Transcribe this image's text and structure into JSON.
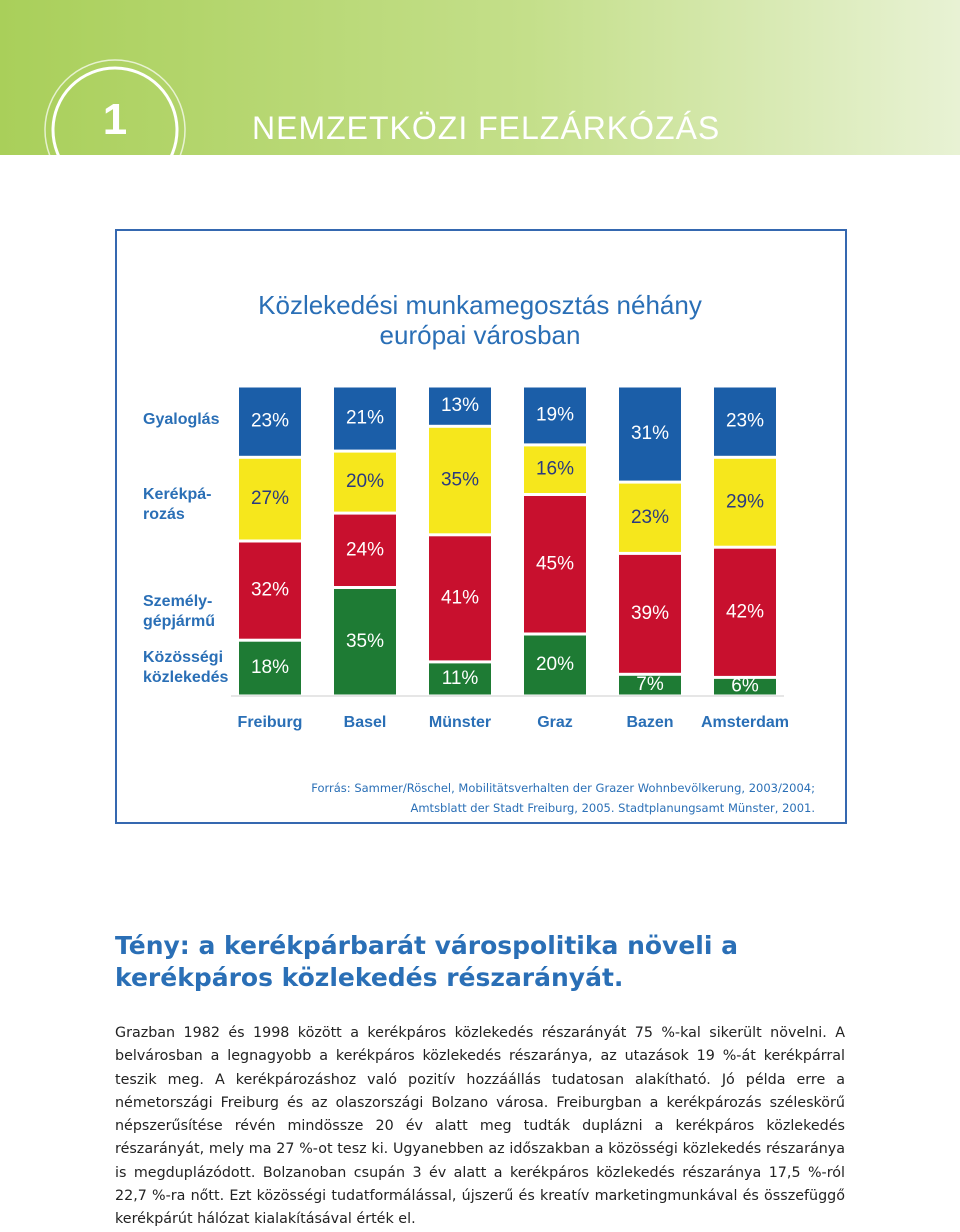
{
  "header": {
    "number": "1",
    "title": "NEMZETKÖZI FELZÁRKÓZÁS"
  },
  "chart_data": {
    "type": "bar",
    "stacked": true,
    "title": "Közlekedési munkamegosztás néhány\neurópai városban",
    "categories": [
      "Freiburg",
      "Basel",
      "Münster",
      "Graz",
      "Bazen",
      "Amsterdam"
    ],
    "ylim": [
      0,
      100
    ],
    "series": [
      {
        "name": "Közösségi\nközlekedés",
        "color": "#1e7b34",
        "values": [
          18,
          35,
          11,
          20,
          7,
          6
        ],
        "value_labels": [
          "18%",
          "35%",
          "11%",
          "20%",
          "7%",
          "6%"
        ]
      },
      {
        "name": "Személy-\ngépjármű",
        "color": "#c8102e",
        "values": [
          32,
          24,
          41,
          45,
          39,
          42
        ],
        "value_labels": [
          "32%",
          "24%",
          "41%",
          "45%",
          "39%",
          "42%"
        ]
      },
      {
        "name": "Kerékpá-\nrozás",
        "color": "#f6e71c",
        "values": [
          27,
          20,
          35,
          16,
          23,
          29
        ],
        "value_labels": [
          "27%",
          "20%",
          "35%",
          "16%",
          "23%",
          "29%"
        ]
      },
      {
        "name": "Gyaloglás",
        "color": "#1b5ea8",
        "values": [
          23,
          21,
          13,
          19,
          31,
          23
        ],
        "value_labels": [
          "23%",
          "21%",
          "13%",
          "19%",
          "31%",
          "23%"
        ]
      }
    ],
    "source": "Forrás: Sammer/Röschel, Mobilitätsverhalten der Grazer Wohnbevölkerung, 2003/2004; Amtsblatt der Stadt Freiburg, 2005. Stadtplanungsamt Münster, 2001."
  },
  "heading": "Tény: a kerékpárbarát várospolitika növeli a kerékpáros közlekedés részarányát.",
  "body": "Grazban 1982 és 1998 között a kerékpáros közlekedés részarányát 75 %-kal sikerült növelni. A belvárosban a legnagyobb a kerékpáros közlekedés részaránya, az utazások 19 %-át kerékpárral teszik meg. A kerékpározáshoz való pozitív hozzáállás tudatosan alakítható. Jó példa erre a németországi Freiburg és az olaszországi Bolzano városa. Freiburgban a kerékpározás széleskörű népszerűsítése révén mindössze 20 év alatt meg tudták duplázni a kerékpáros közlekedés részarányát, mely ma 27 %-ot tesz ki. Ugyanebben az időszakban a közösségi közlekedés részaránya is megduplázódott. Bolzanoban csupán 3 év alatt a kerékpáros közlekedés részaránya 17,5 %-ról 22,7 %-ra nőtt. Ezt közösségi tudatformálással, újszerű és kreatív marketingmunkával és összefüggő kerékpárút hálózat kialakításával érték el."
}
